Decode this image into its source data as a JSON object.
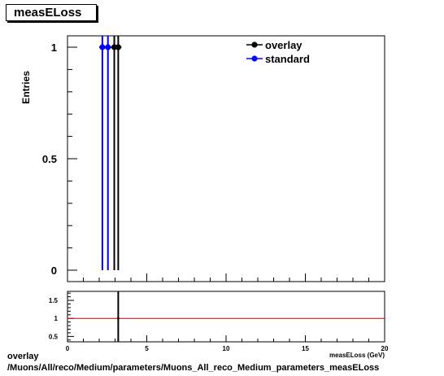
{
  "title": "measELoss",
  "footer": {
    "line1": "overlay",
    "line2": "/Muons/All/reco/Medium/parameters/Muons_All_reco_Medium_parameters_measELoss"
  },
  "colors": {
    "overlay": "#000000",
    "standard": "#0000ff",
    "ratio_line": "#cc0000"
  },
  "chart_data": [
    {
      "type": "scatter",
      "title": "measELoss",
      "xlabel": "measELoss (GeV)",
      "ylabel": "Entries",
      "xlim": [
        0,
        20
      ],
      "ylim": [
        0,
        1.05
      ],
      "yticks": [
        "0",
        "0.5",
        "1"
      ],
      "legend_position": "top-right",
      "series": [
        {
          "name": "overlay",
          "x": [
            2.95,
            3.2
          ],
          "y": [
            1,
            1
          ],
          "color": "#000000"
        },
        {
          "name": "standard",
          "x": [
            2.2,
            2.55
          ],
          "y": [
            1,
            1
          ],
          "color": "#0000ff"
        }
      ]
    },
    {
      "type": "line",
      "title": "",
      "xlabel": "",
      "ylabel": "",
      "xlim": [
        0,
        20
      ],
      "ylim": [
        0.35,
        1.75
      ],
      "xticks": [
        "0",
        "5",
        "10",
        "15",
        "20"
      ],
      "yticks": [
        "0.5",
        "1",
        "1.5"
      ],
      "reference_line": 1,
      "series": [
        {
          "name": "",
          "x": [
            3.2
          ],
          "y": [
            1
          ],
          "color": "#000000"
        }
      ]
    }
  ]
}
